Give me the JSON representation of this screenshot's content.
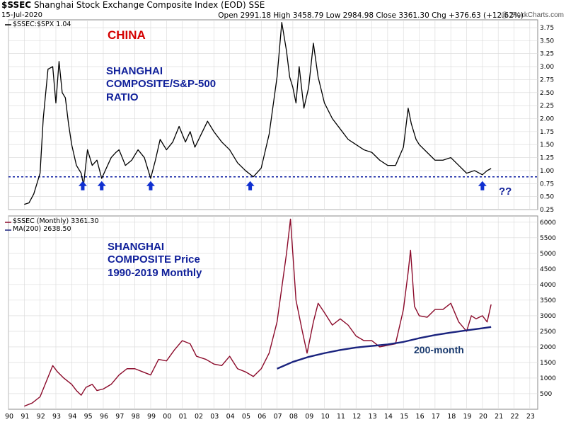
{
  "header": {
    "symbol": "$SSEC",
    "index_name": "Shanghai Stock Exchange Composite Index (EOD)  SSE",
    "date": "15-Jul-2020",
    "ohlc": "Open 2991.18  High 3458.79  Low 2984.98  Close 3361.30  Chg +376.63 (+12.62%)",
    "brand": "@ StockCharts.com"
  },
  "annotations": {
    "country": "CHINA",
    "ratio_line1": "SHANGHAI",
    "ratio_line2": "COMPOSITE/S&P-500",
    "ratio_line3": "RATIO",
    "price_line1": "SHANGHAI",
    "price_line2": "COMPOSITE Price",
    "price_line3": "1990-2019 Monthly",
    "ma_label": "200-month",
    "question": "??"
  },
  "colors": {
    "ratio_line": "#000000",
    "price_line": "#8b0a2a",
    "ma_line": "#1a237e",
    "support_line": "#0a1aa0",
    "arrow": "#1030d0",
    "grid": "#d8d8d8"
  },
  "chart_data": [
    {
      "type": "line",
      "legend": "$SSEC:$SPX 1.04",
      "ylim": [
        0.25,
        3.9
      ],
      "y_ticks": [
        "0.25",
        "0.50",
        "0.75",
        "1.00",
        "1.25",
        "1.50",
        "1.75",
        "2.00",
        "2.25",
        "2.50",
        "2.75",
        "3.00",
        "3.25",
        "3.50",
        "3.75"
      ],
      "support_level": 0.88,
      "arrow_years": [
        1994.7,
        1995.9,
        1999.0,
        2005.3,
        2020.0
      ],
      "x": [
        1991.0,
        1991.3,
        1991.6,
        1992.0,
        1992.2,
        1992.5,
        1992.8,
        1993.0,
        1993.2,
        1993.4,
        1993.6,
        1993.8,
        1994.0,
        1994.3,
        1994.6,
        1994.75,
        1995.0,
        1995.3,
        1995.6,
        1995.9,
        1996.2,
        1996.5,
        1996.8,
        1997.0,
        1997.4,
        1997.8,
        1998.2,
        1998.6,
        1999.0,
        1999.3,
        1999.6,
        2000.0,
        2000.4,
        2000.8,
        2001.2,
        2001.5,
        2001.8,
        2002.2,
        2002.6,
        2003.0,
        2003.5,
        2004.0,
        2004.5,
        2005.0,
        2005.5,
        2006.0,
        2006.5,
        2007.0,
        2007.3,
        2007.6,
        2007.8,
        2008.0,
        2008.2,
        2008.4,
        2008.7,
        2009.0,
        2009.3,
        2009.6,
        2010.0,
        2010.5,
        2011.0,
        2011.5,
        2012.0,
        2012.5,
        2013.0,
        2013.5,
        2014.0,
        2014.5,
        2015.0,
        2015.3,
        2015.5,
        2015.8,
        2016.0,
        2016.5,
        2017.0,
        2017.5,
        2018.0,
        2018.5,
        2019.0,
        2019.5,
        2020.0,
        2020.3,
        2020.55
      ],
      "y": [
        0.35,
        0.38,
        0.55,
        0.95,
        2.0,
        2.95,
        3.0,
        2.3,
        3.1,
        2.5,
        2.4,
        1.9,
        1.5,
        1.1,
        0.95,
        0.72,
        1.4,
        1.1,
        1.2,
        0.85,
        1.05,
        1.25,
        1.35,
        1.4,
        1.1,
        1.2,
        1.4,
        1.25,
        0.85,
        1.2,
        1.6,
        1.4,
        1.55,
        1.85,
        1.55,
        1.75,
        1.45,
        1.7,
        1.95,
        1.75,
        1.55,
        1.4,
        1.15,
        1.0,
        0.88,
        1.05,
        1.7,
        2.8,
        3.85,
        3.3,
        2.8,
        2.6,
        2.3,
        3.0,
        2.2,
        2.6,
        3.45,
        2.8,
        2.3,
        2.0,
        1.8,
        1.6,
        1.5,
        1.4,
        1.35,
        1.2,
        1.1,
        1.1,
        1.45,
        2.2,
        1.9,
        1.6,
        1.5,
        1.35,
        1.2,
        1.2,
        1.25,
        1.1,
        0.95,
        1.0,
        0.92,
        1.0,
        1.04
      ]
    },
    {
      "type": "line",
      "legend_price": "$SSEC (Monthly) 3361.30",
      "legend_ma": "MA(200) 2638.50",
      "ylim": [
        0,
        6200
      ],
      "xlim": [
        1990,
        2023.5
      ],
      "x_tick_labels": [
        "90",
        "91",
        "92",
        "93",
        "94",
        "95",
        "96",
        "97",
        "98",
        "99",
        "00",
        "01",
        "02",
        "03",
        "04",
        "05",
        "06",
        "07",
        "08",
        "09",
        "10",
        "11",
        "12",
        "13",
        "14",
        "15",
        "16",
        "17",
        "18",
        "19",
        "20",
        "21",
        "22",
        "23"
      ],
      "y_ticks": [
        "500",
        "1000",
        "1500",
        "2000",
        "2500",
        "3000",
        "3500",
        "4000",
        "4500",
        "5000",
        "5500",
        "6000"
      ],
      "x": [
        1991.0,
        1991.5,
        1992.0,
        1992.4,
        1992.8,
        1993.1,
        1993.5,
        1994.0,
        1994.3,
        1994.6,
        1994.9,
        1995.3,
        1995.6,
        1996.0,
        1996.5,
        1997.0,
        1997.5,
        1998.0,
        1998.5,
        1999.0,
        1999.5,
        2000.0,
        2000.5,
        2001.0,
        2001.5,
        2001.9,
        2002.5,
        2003.0,
        2003.5,
        2004.0,
        2004.5,
        2005.0,
        2005.5,
        2006.0,
        2006.5,
        2007.0,
        2007.3,
        2007.6,
        2007.85,
        2008.2,
        2008.6,
        2008.9,
        2009.3,
        2009.6,
        2010.0,
        2010.5,
        2011.0,
        2011.5,
        2012.0,
        2012.5,
        2013.0,
        2013.5,
        2014.0,
        2014.5,
        2015.0,
        2015.3,
        2015.45,
        2015.7,
        2016.0,
        2016.5,
        2017.0,
        2017.5,
        2018.0,
        2018.5,
        2019.0,
        2019.3,
        2019.6,
        2020.0,
        2020.3,
        2020.55
      ],
      "y": [
        100,
        200,
        400,
        900,
        1400,
        1200,
        1000,
        800,
        600,
        450,
        700,
        800,
        600,
        650,
        800,
        1100,
        1300,
        1300,
        1200,
        1100,
        1600,
        1550,
        1900,
        2200,
        2100,
        1700,
        1600,
        1450,
        1400,
        1700,
        1300,
        1200,
        1050,
        1300,
        1800,
        2800,
        3900,
        5000,
        6100,
        3500,
        2500,
        1800,
        2800,
        3400,
        3100,
        2700,
        2900,
        2700,
        2350,
        2200,
        2200,
        2000,
        2050,
        2100,
        3200,
        4400,
        5100,
        3300,
        3000,
        2950,
        3200,
        3200,
        3400,
        2800,
        2500,
        3000,
        2900,
        3000,
        2800,
        3361
      ]
    },
    {
      "type": "line",
      "name": "200-month",
      "x": [
        2007.0,
        2008.0,
        2009.0,
        2010.0,
        2011.0,
        2012.0,
        2013.0,
        2014.0,
        2015.0,
        2016.0,
        2017.0,
        2018.0,
        2019.0,
        2020.0,
        2020.55
      ],
      "y": [
        1300,
        1520,
        1680,
        1800,
        1900,
        1980,
        2030,
        2080,
        2160,
        2280,
        2380,
        2460,
        2530,
        2600,
        2640
      ]
    }
  ]
}
